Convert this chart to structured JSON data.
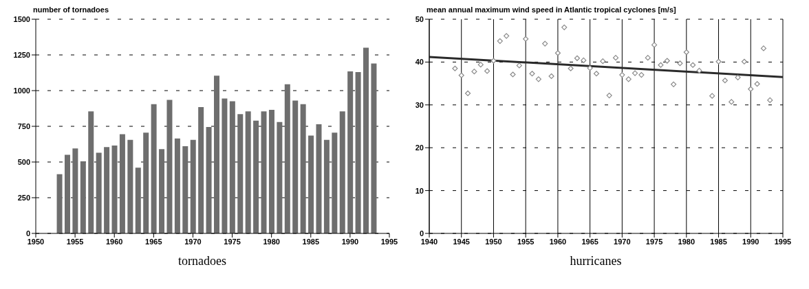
{
  "chart_data": [
    {
      "type": "bar",
      "title": "number of tornadoes",
      "annotations": [
        "tornadoes"
      ],
      "x": [
        1953,
        1954,
        1955,
        1956,
        1957,
        1958,
        1959,
        1960,
        1961,
        1962,
        1963,
        1964,
        1965,
        1966,
        1967,
        1968,
        1969,
        1970,
        1971,
        1972,
        1973,
        1974,
        1975,
        1976,
        1977,
        1978,
        1979,
        1980,
        1981,
        1982,
        1983,
        1984,
        1985,
        1986,
        1987,
        1988,
        1989,
        1990,
        1991,
        1992,
        1993
      ],
      "values": [
        415,
        550,
        595,
        505,
        855,
        565,
        605,
        615,
        695,
        655,
        460,
        705,
        905,
        590,
        935,
        665,
        610,
        655,
        885,
        745,
        1105,
        945,
        925,
        835,
        855,
        790,
        855,
        865,
        780,
        1045,
        930,
        905,
        685,
        765,
        655,
        705,
        855,
        1135,
        1130,
        1300,
        1190
      ],
      "color": "#6e6e6e",
      "xlim": [
        1950,
        1995
      ],
      "xticks": [
        1950,
        1955,
        1960,
        1965,
        1970,
        1975,
        1980,
        1985,
        1990,
        1995
      ],
      "ylim": [
        0,
        1500
      ],
      "yticks": [
        0,
        250,
        500,
        750,
        1000,
        1250,
        1500
      ],
      "grid": "y"
    },
    {
      "type": "scatter",
      "title": "mean annual maximum wind speed in Atlantic tropical cyclones [m/s]",
      "annotations": [
        "hurricanes"
      ],
      "grid": true,
      "series": [
        {
          "color": "#8a8a8a",
          "marker": "diamond",
          "x": [
            1944,
            1945,
            1946,
            1947,
            1948,
            1949,
            1950,
            1951,
            1952,
            1953,
            1954,
            1955,
            1956,
            1957,
            1958,
            1959,
            1960,
            1961,
            1962,
            1963,
            1964,
            1965,
            1966,
            1967,
            1968,
            1969,
            1970,
            1971,
            1972,
            1973,
            1974,
            1975,
            1976,
            1977,
            1978,
            1979,
            1980,
            1981,
            1982,
            1984,
            1985,
            1986,
            1987,
            1988,
            1989,
            1990,
            1991,
            1992,
            1993
          ],
          "values": [
            38.5,
            36.9,
            32.7,
            37.8,
            39.4,
            37.9,
            40.3,
            44.9,
            46.1,
            37.1,
            39.2,
            45.4,
            37.3,
            36.0,
            44.3,
            36.7,
            42.1,
            48.1,
            38.5,
            40.9,
            40.4,
            38.6,
            37.3,
            40.2,
            32.2,
            41.0,
            37.0,
            36.0,
            37.4,
            37.0,
            41.0,
            44.0,
            39.3,
            40.3,
            34.8,
            39.7,
            42.3,
            39.3,
            38.0,
            32.1,
            40.1,
            35.7,
            30.7,
            36.4,
            40.1,
            33.7,
            34.9,
            43.2,
            31.1
          ]
        },
        {
          "type": "line",
          "color": "#2a2a2a",
          "x": [
            1940,
            1995
          ],
          "values": [
            41.2,
            36.5
          ]
        }
      ],
      "xlim": [
        1940,
        1995
      ],
      "xticks": [
        1940,
        1945,
        1950,
        1955,
        1960,
        1965,
        1970,
        1975,
        1980,
        1985,
        1990,
        1995
      ],
      "ylim": [
        0,
        50
      ],
      "yticks": [
        0,
        10,
        20,
        30,
        40,
        50
      ]
    }
  ]
}
